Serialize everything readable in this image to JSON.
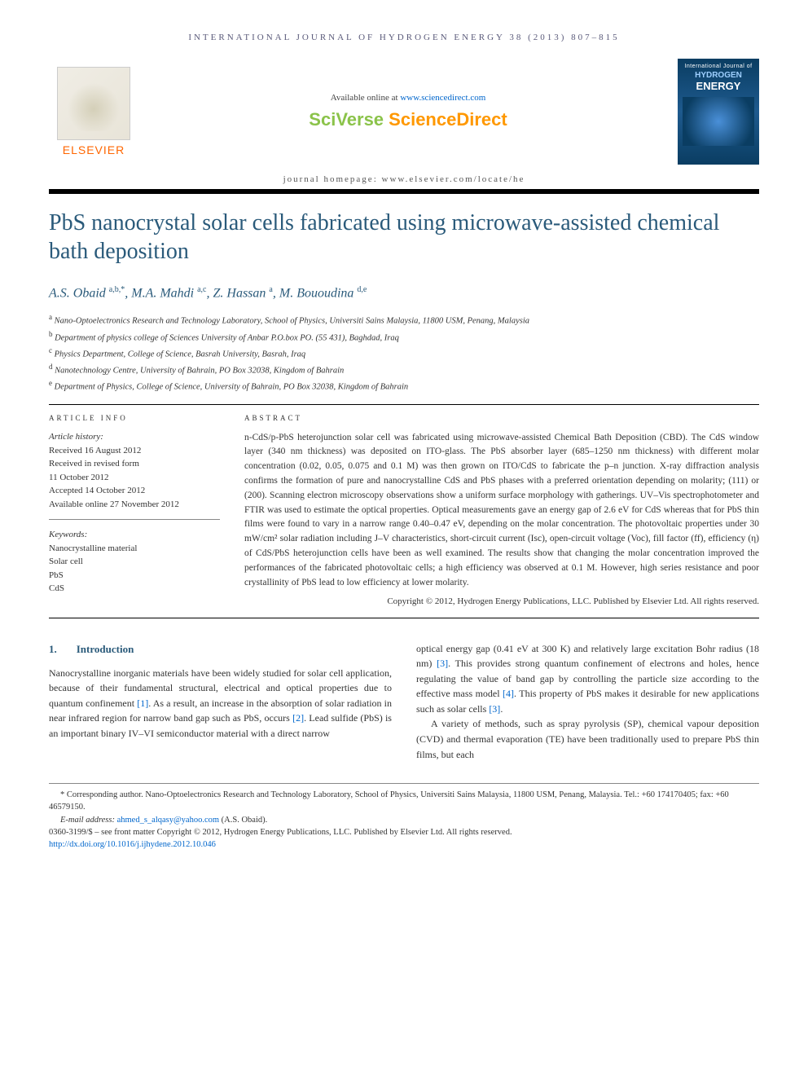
{
  "running_header": "INTERNATIONAL JOURNAL OF HYDROGEN ENERGY 38 (2013) 807–815",
  "available_text": "Available online at ",
  "available_url": "www.sciencedirect.com",
  "sciverse_left": "SciVerse ",
  "sciverse_right": "ScienceDirect",
  "elsevier_name": "ELSEVIER",
  "cover": {
    "line1": "International Journal of",
    "hyd": "HYDROGEN",
    "eng": "ENERGY"
  },
  "homepage_line": "journal homepage: www.elsevier.com/locate/he",
  "title": "PbS nanocrystal solar cells fabricated using microwave-assisted chemical bath deposition",
  "authors_html": "A.S. Obaid <sup>a,b,*</sup>, M.A. Mahdi <sup>a,c</sup>, Z. Hassan <sup>a</sup>, M. Bououdina <sup>d,e</sup>",
  "affiliations": [
    {
      "sup": "a",
      "text": "Nano-Optoelectronics Research and Technology Laboratory, School of Physics, Universiti Sains Malaysia, 11800 USM, Penang, Malaysia"
    },
    {
      "sup": "b",
      "text": "Department of physics college of Sciences University of Anbar P.O.box PO. (55 431), Baghdad, Iraq"
    },
    {
      "sup": "c",
      "text": "Physics Department, College of Science, Basrah University, Basrah, Iraq"
    },
    {
      "sup": "d",
      "text": "Nanotechnology Centre, University of Bahrain, PO Box 32038, Kingdom of Bahrain"
    },
    {
      "sup": "e",
      "text": "Department of Physics, College of Science, University of Bahrain, PO Box 32038, Kingdom of Bahrain"
    }
  ],
  "info_heading": "ARTICLE INFO",
  "abstract_heading": "ABSTRACT",
  "history_label": "Article history:",
  "history": [
    "Received 16 August 2012",
    "Received in revised form",
    "11 October 2012",
    "Accepted 14 October 2012",
    "Available online 27 November 2012"
  ],
  "keywords_label": "Keywords:",
  "keywords": [
    "Nanocrystalline material",
    "Solar cell",
    "PbS",
    "CdS"
  ],
  "abstract": "n-CdS/p-PbS heterojunction solar cell was fabricated using microwave-assisted Chemical Bath Deposition (CBD). The CdS window layer (340 nm thickness) was deposited on ITO-glass. The PbS absorber layer (685–1250 nm thickness) with different molar concentration (0.02, 0.05, 0.075 and 0.1 M) was then grown on ITO/CdS to fabricate the p–n junction. X-ray diffraction analysis confirms the formation of pure and nanocrystalline CdS and PbS phases with a preferred orientation depending on molarity; (111) or (200). Scanning electron microscopy observations show a uniform surface morphology with gatherings. UV–Vis spectrophotometer and FTIR was used to estimate the optical properties. Optical measurements gave an energy gap of 2.6 eV for CdS whereas that for PbS thin films were found to vary in a narrow range 0.40–0.47 eV, depending on the molar concentration. The photovoltaic properties under 30 mW/cm² solar radiation including J–V characteristics, short-circuit current (Isc), open-circuit voltage (Voc), fill factor (ff), efficiency (η) of CdS/PbS heterojunction cells have been as well examined. The results show that changing the molar concentration improved the performances of the fabricated photovoltaic cells; a high efficiency was observed at 0.1 M. However, high series resistance and poor crystallinity of PbS lead to low efficiency at lower molarity.",
  "copyright": "Copyright © 2012, Hydrogen Energy Publications, LLC. Published by Elsevier Ltd. All rights reserved.",
  "section1_num": "1.",
  "section1_title": "Introduction",
  "col_left_p1a": "Nanocrystalline inorganic materials have been widely studied for solar cell application, because of their fundamental structural, electrical and optical properties due to quantum confinement ",
  "ref1": "[1]",
  "col_left_p1b": ". As a result, an increase in the absorption of solar radiation in near infrared region for narrow band gap such as PbS, occurs ",
  "ref2": "[2]",
  "col_left_p1c": ". Lead sulfide (PbS) is an important binary IV–VI semiconductor material with a direct narrow",
  "col_right_p1a": "optical energy gap (0.41 eV at 300 K) and relatively large excitation Bohr radius (18 nm) ",
  "ref3": "[3]",
  "col_right_p1b": ". This provides strong quantum confinement of electrons and holes, hence regulating the value of band gap by controlling the particle size according to the effective mass model ",
  "ref4": "[4]",
  "col_right_p1c": ". This property of PbS makes it desirable for new applications such as solar cells ",
  "ref3b": "[3]",
  "col_right_p1d": ".",
  "col_right_p2": "A variety of methods, such as spray pyrolysis (SP), chemical vapour deposition (CVD) and thermal evaporation (TE) have been traditionally used to prepare PbS thin films, but each",
  "footnote_corr": "* Corresponding author. Nano-Optoelectronics Research and Technology Laboratory, School of Physics, Universiti Sains Malaysia, 11800 USM, Penang, Malaysia. Tel.: +60 174170405; fax: +60 46579150.",
  "footnote_email_label": "E-mail address: ",
  "footnote_email": "ahmed_s_alqasy@yahoo.com",
  "footnote_email_author": " (A.S. Obaid).",
  "footnote_issn": "0360-3199/$ – see front matter Copyright © 2012, Hydrogen Energy Publications, LLC. Published by Elsevier Ltd. All rights reserved.",
  "footnote_doi": "http://dx.doi.org/10.1016/j.ijhydene.2012.10.046"
}
